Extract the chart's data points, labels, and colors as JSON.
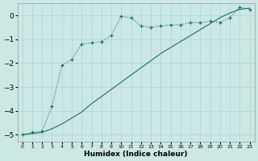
{
  "xlabel": "Humidex (Indice chaleur)",
  "bg_color": "#cce8e4",
  "grid_color": "#b0d8d4",
  "line_color": "#1a6e60",
  "xlim": [
    -0.5,
    23.5
  ],
  "ylim": [
    -5.3,
    0.5
  ],
  "yticks": [
    0,
    -1,
    -2,
    -3,
    -4,
    -5
  ],
  "xticks": [
    0,
    1,
    2,
    3,
    4,
    5,
    6,
    7,
    8,
    9,
    10,
    11,
    12,
    13,
    14,
    15,
    16,
    17,
    18,
    19,
    20,
    21,
    22,
    23
  ],
  "line1_x": [
    0,
    1,
    2,
    3,
    4,
    5,
    6,
    7,
    8,
    9,
    10,
    11,
    12,
    13,
    14,
    15,
    16,
    17,
    18,
    19,
    20,
    21,
    22,
    23
  ],
  "line1_y": [
    -5.0,
    -4.9,
    -4.85,
    -3.8,
    -2.1,
    -1.85,
    -1.2,
    -1.15,
    -1.1,
    -0.85,
    -0.05,
    -0.1,
    -0.45,
    -0.5,
    -0.45,
    -0.4,
    -0.4,
    -0.3,
    -0.3,
    -0.25,
    -0.3,
    -0.1,
    0.35,
    0.25
  ],
  "line2_x": [
    0,
    2,
    3,
    4,
    5,
    6,
    7,
    8,
    9,
    10,
    11,
    12,
    13,
    14,
    15,
    16,
    17,
    18,
    19,
    20,
    21,
    22,
    23
  ],
  "line2_y": [
    -5.0,
    -4.9,
    -4.75,
    -4.55,
    -4.3,
    -4.05,
    -3.7,
    -3.4,
    -3.1,
    -2.8,
    -2.5,
    -2.2,
    -1.9,
    -1.6,
    -1.35,
    -1.1,
    -0.85,
    -0.6,
    -0.35,
    -0.1,
    0.1,
    0.25,
    0.3
  ]
}
